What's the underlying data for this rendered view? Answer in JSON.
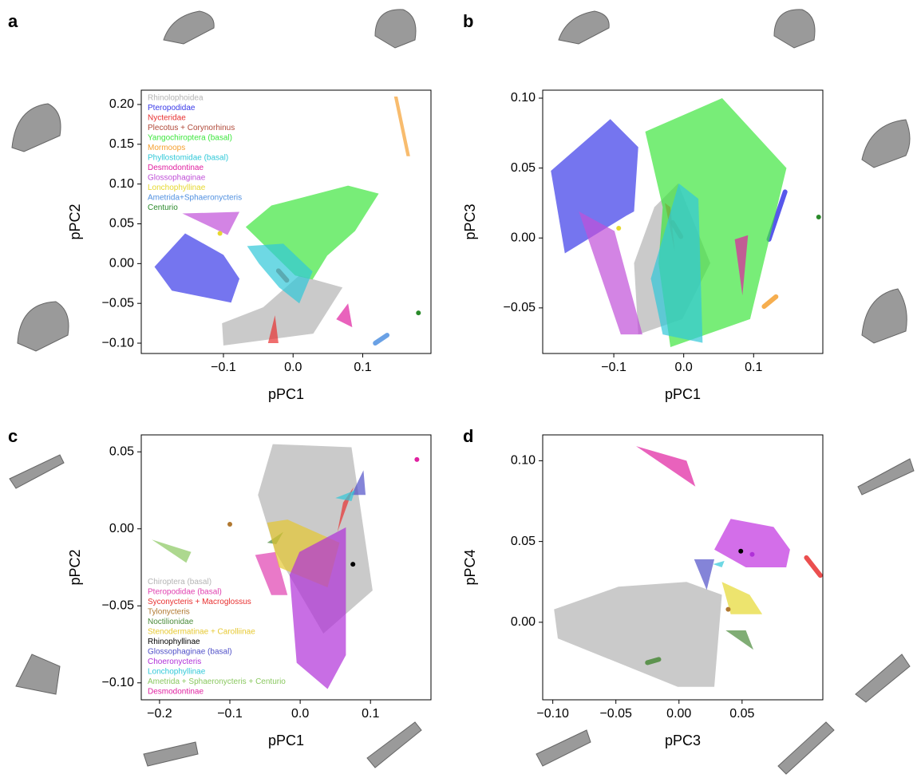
{
  "chart_data": [
    {
      "type": "polygon",
      "panel": "a",
      "xlabel": "pPC1",
      "ylabel": "pPC2",
      "legend": "upper left",
      "xlim": [
        -0.218,
        0.198
      ],
      "ylim": [
        -0.113,
        0.218
      ],
      "xticks": [
        {
          "value": -0.1,
          "label": "−0.1"
        },
        {
          "value": 0,
          "label": "0.0"
        },
        0.1
      ],
      "yticks": [
        {
          "value": -0.1,
          "label": "−0.10"
        },
        {
          "value": -0.05,
          "label": "−0.05"
        },
        {
          "value": 0,
          "label": "0.00"
        },
        0.05,
        {
          "value": 0.1,
          "label": "0.10"
        },
        0.15,
        {
          "value": 0.2,
          "label": "0.20"
        }
      ],
      "series": [
        {
          "name": "Rhinolophoidea",
          "color": "#b4b4b4",
          "x": [
            -0.102,
            -0.1,
            0.029,
            0.071,
            0.009,
            -0.043
          ],
          "y": [
            -0.075,
            -0.103,
            -0.088,
            -0.03,
            -0.015,
            -0.055
          ]
        },
        {
          "name": "Pteropodidae",
          "color": "#3a3ae8",
          "x": [
            -0.199,
            -0.155,
            -0.1,
            -0.077,
            -0.089,
            -0.174
          ],
          "y": [
            -0.004,
            0.038,
            0.011,
            -0.019,
            -0.049,
            -0.034
          ]
        },
        {
          "name": "Nycteridae",
          "color": "#e83030",
          "x": [
            -0.036,
            -0.021,
            -0.026
          ],
          "y": [
            -0.1,
            -0.1,
            -0.065
          ]
        },
        {
          "name": "Plecotus + Corynorhinus",
          "color": "#b04a3a",
          "x": [
            -0.021,
            -0.009
          ],
          "y": [
            -0.009,
            -0.021
          ]
        },
        {
          "name": "Yangochiroptera (basal)",
          "color": "#3ee63e",
          "x": [
            -0.068,
            -0.031,
            0.079,
            0.123,
            0.089,
            0.049,
            0.028,
            0.003,
            -0.026
          ],
          "y": [
            0.046,
            0.073,
            0.098,
            0.088,
            0.041,
            0.01,
            -0.02,
            -0.015,
            0.01
          ]
        },
        {
          "name": "Mormoops",
          "color": "#f5a030",
          "x": [
            0.145,
            0.15,
            0.168,
            0.163
          ],
          "y": [
            0.21,
            0.21,
            0.135,
            0.135
          ]
        },
        {
          "name": "Phyllostomidae (basal)",
          "color": "#30c8d8",
          "x": [
            -0.066,
            -0.014,
            0.028,
            0.009,
            -0.02,
            -0.049
          ],
          "y": [
            0.022,
            0.025,
            -0.01,
            -0.05,
            -0.03,
            0
          ]
        },
        {
          "name": "Desmodontinae",
          "color": "#e020a0",
          "x": [
            0.062,
            0.079,
            0.085
          ],
          "y": [
            -0.07,
            -0.05,
            -0.08
          ]
        },
        {
          "name": "Glossophaginae",
          "color": "#c050d8",
          "x": [
            -0.159,
            -0.077,
            -0.094
          ],
          "y": [
            0.063,
            0.065,
            0.036
          ]
        },
        {
          "name": "Lonchophyllinae",
          "color": "#e6d830",
          "x": [
            -0.105
          ],
          "y": [
            0.038
          ]
        },
        {
          "name": "Ametrida+Sphaeronycteris",
          "color": "#5090e0",
          "x": [
            0.118,
            0.135
          ],
          "y": [
            -0.1,
            -0.09
          ]
        },
        {
          "name": "Centurio",
          "color": "#2a8a2a",
          "x": [
            0.18
          ],
          "y": [
            -0.062
          ]
        }
      ]
    },
    {
      "type": "polygon",
      "panel": "b",
      "xlabel": "pPC1",
      "ylabel": "pPC3",
      "xlim": [
        -0.2017,
        0.199
      ],
      "ylim": [
        -0.0826,
        0.1057
      ],
      "xticks": [
        {
          "value": -0.1,
          "label": "−0.1"
        },
        {
          "value": 0,
          "label": "0.0"
        },
        0.1
      ],
      "yticks": [
        {
          "value": -0.05,
          "label": "−0.05"
        },
        {
          "value": 0,
          "label": "0.00"
        },
        0.05,
        {
          "value": 0.1,
          "label": "0.10"
        }
      ],
      "series": [
        {
          "color": "#b4b4b4",
          "x": [
            -0.065,
            -0.002,
            0.038,
            -0.008,
            -0.042,
            -0.071
          ],
          "y": [
            -0.069,
            -0.058,
            -0.018,
            0.039,
            0.022,
            -0.018
          ]
        },
        {
          "color": "#3a3ae8",
          "x": [
            -0.19,
            -0.105,
            -0.065,
            -0.071,
            -0.082,
            -0.17
          ],
          "y": [
            0.048,
            0.085,
            0.065,
            0.019,
            0.016,
            -0.011
          ]
        },
        {
          "color": "#3a3ae8",
          "x": [
            0.122,
            0.145
          ],
          "y": [
            -0.001,
            0.033
          ]
        },
        {
          "color": "#e83030",
          "x": [
            -0.027,
            -0.013,
            -0.019
          ],
          "y": [
            0.025,
            -0.009,
            0.022
          ]
        },
        {
          "color": "#b04a3a",
          "x": [
            -0.016,
            -0.004
          ],
          "y": [
            0.011,
            0.001
          ]
        },
        {
          "color": "#3ee63e",
          "x": [
            -0.055,
            0.055,
            0.147,
            0.095,
            -0.019,
            -0.036,
            -0.03
          ],
          "y": [
            0.076,
            0.1,
            0.05,
            -0.058,
            -0.078,
            -0.018,
            0.022
          ]
        },
        {
          "color": "#f5a030",
          "x": [
            0.115,
            0.132
          ],
          "y": [
            -0.049,
            -0.042
          ]
        },
        {
          "color": "#30c8d8",
          "x": [
            -0.047,
            -0.007,
            0.021,
            0.027,
            -0.03
          ],
          "y": [
            -0.029,
            0.039,
            0.028,
            -0.075,
            -0.069
          ]
        },
        {
          "color": "#e020a0",
          "x": [
            0.073,
            0.092,
            0.084
          ],
          "y": [
            -0.001,
            0.002,
            -0.041
          ]
        },
        {
          "color": "#c050d8",
          "x": [
            -0.15,
            -0.099,
            -0.059,
            -0.09
          ],
          "y": [
            0.019,
            0.005,
            -0.069,
            -0.069
          ]
        },
        {
          "color": "#e6d830",
          "x": [
            -0.093
          ],
          "y": [
            0.007
          ]
        },
        {
          "color": "#2a8a2a",
          "x": [
            0.193
          ],
          "y": [
            0.015
          ]
        }
      ]
    },
    {
      "type": "polygon",
      "panel": "c",
      "xlabel": "pPC1",
      "ylabel": "pPC2",
      "legend": "lower left",
      "xlim": [
        -0.226,
        0.186
      ],
      "ylim": [
        -0.111,
        0.061
      ],
      "xticks": [
        {
          "value": -0.2,
          "label": "−0.2"
        },
        {
          "value": -0.1,
          "label": "−0.1"
        },
        {
          "value": 0,
          "label": "0.0"
        },
        0.1
      ],
      "yticks": [
        {
          "value": -0.1,
          "label": "−0.10"
        },
        {
          "value": -0.05,
          "label": "−0.05"
        },
        {
          "value": 0,
          "label": "0.00"
        },
        0.05
      ],
      "series": [
        {
          "name": "Chiroptera (basal)",
          "color": "#b4b4b4",
          "x": [
            -0.039,
            0.073,
            0.103,
            0.033,
            -0.035,
            -0.06
          ],
          "y": [
            0.055,
            0.053,
            -0.04,
            -0.068,
            -0.015,
            0.022
          ]
        },
        {
          "name": "Pteropodidae (basal)",
          "color": "#e040b0",
          "x": [
            -0.064,
            -0.035,
            -0.018,
            -0.041
          ],
          "y": [
            -0.017,
            -0.015,
            -0.043,
            -0.043
          ]
        },
        {
          "name": "Syconycteris + Macroglossus",
          "color": "#e83030",
          "x": [
            0.053,
            0.076,
            0.061
          ],
          "y": [
            -0.002,
            0.027,
            0.017
          ]
        },
        {
          "name": "Tylonycteris",
          "color": "#b07830",
          "x": [
            -0.1
          ],
          "y": [
            0.003
          ]
        },
        {
          "name": "Noctilionidae",
          "color": "#4a8a3a",
          "x": [
            -0.047,
            -0.024,
            -0.034
          ],
          "y": [
            -0.009,
            -0.002,
            -0.01
          ]
        },
        {
          "name": "Stenodermatinae + Carolliinae",
          "color": "#e6c830",
          "x": [
            -0.047,
            -0.018,
            0.056,
            0.039,
            -0.03
          ],
          "y": [
            0.004,
            0.006,
            -0.009,
            -0.038,
            -0.025
          ]
        },
        {
          "name": "Rhinophyllinae",
          "color": "#000000",
          "x": [
            0.075
          ],
          "y": [
            -0.023
          ]
        },
        {
          "name": "Glossophaginae (basal)",
          "color": "#5050c8",
          "x": [
            0.073,
            0.09,
            0.093
          ],
          "y": [
            0.022,
            0.038,
            0.022
          ]
        },
        {
          "name": "Choeronycteris",
          "color": "#b030d8",
          "x": [
            -0.015,
            -0.001,
            0.065,
            0.065,
            0.039,
            -0.005
          ],
          "y": [
            -0.03,
            -0.015,
            0.001,
            -0.082,
            -0.104,
            -0.087
          ]
        },
        {
          "name": "Lonchophyllinae",
          "color": "#30c8d8",
          "x": [
            0.05,
            0.078,
            0.073
          ],
          "y": [
            0.02,
            0.025,
            0.018
          ]
        },
        {
          "name": "Ametrida + Sphaeronycteris + Centurio",
          "color": "#8ac860",
          "x": [
            -0.211,
            -0.155,
            -0.162
          ],
          "y": [
            -0.007,
            -0.015,
            -0.022
          ]
        },
        {
          "name": "Desmodontinae",
          "color": "#e020a0",
          "x": [
            0.166
          ],
          "y": [
            0.045
          ]
        }
      ]
    },
    {
      "type": "polygon",
      "panel": "d",
      "xlabel": "pPC3",
      "ylabel": "pPC4",
      "xlim": [
        -0.108,
        0.114
      ],
      "ylim": [
        -0.048,
        0.116
      ],
      "xticks": [
        {
          "value": -0.1,
          "label": "−0.10"
        },
        {
          "value": -0.05,
          "label": "−0.05"
        },
        {
          "value": 0,
          "label": "0.00"
        },
        0.05
      ],
      "yticks": [
        {
          "value": 0,
          "label": "0.00"
        },
        0.05,
        {
          "value": 0.1,
          "label": "0.10"
        }
      ],
      "series": [
        {
          "color": "#b4b4b4",
          "x": [
            -0.099,
            -0.048,
            0.006,
            0.034,
            0.028,
            0.018,
            -0.001,
            -0.096
          ],
          "y": [
            0.008,
            0.022,
            0.025,
            0.017,
            -0.04,
            -0.04,
            -0.04,
            -0.01
          ]
        },
        {
          "color": "#e020a0",
          "x": [
            -0.034,
            0.006,
            0.013
          ],
          "y": [
            0.109,
            0.1,
            0.084
          ]
        },
        {
          "color": "#c030e0",
          "x": [
            0.028,
            0.041,
            0.075,
            0.088,
            0.085,
            0.053
          ],
          "y": [
            0.045,
            0.064,
            0.059,
            0.045,
            0.034,
            0.034
          ]
        },
        {
          "color": "#e83030",
          "x": [
            0.101,
            0.112
          ],
          "y": [
            0.04,
            0.029
          ]
        },
        {
          "color": "#5050c8",
          "x": [
            0.012,
            0.022,
            0.028
          ],
          "y": [
            0.039,
            0.02,
            0.039
          ]
        },
        {
          "color": "#30c8d8",
          "x": [
            0.027,
            0.036,
            0.034
          ],
          "y": [
            0.036,
            0.038,
            0.034
          ]
        },
        {
          "color": "#e6d830",
          "x": [
            0.034,
            0.056,
            0.066,
            0.041
          ],
          "y": [
            0.025,
            0.017,
            0.005,
            0.005
          ]
        },
        {
          "color": "#4a8a3a",
          "x": [
            0.037,
            0.053,
            0.059
          ],
          "y": [
            -0.005,
            -0.005,
            -0.017
          ]
        },
        {
          "color": "#4a8a3a",
          "x": [
            -0.025,
            -0.016
          ],
          "y": [
            -0.025,
            -0.023
          ]
        },
        {
          "color": "#000000",
          "x": [
            0.049
          ],
          "y": [
            0.044
          ]
        },
        {
          "color": "#b030d8",
          "x": [
            0.058
          ],
          "y": [
            0.042
          ]
        },
        {
          "color": "#b07830",
          "x": [
            0.039
          ],
          "y": [
            0.008
          ]
        }
      ]
    }
  ]
}
